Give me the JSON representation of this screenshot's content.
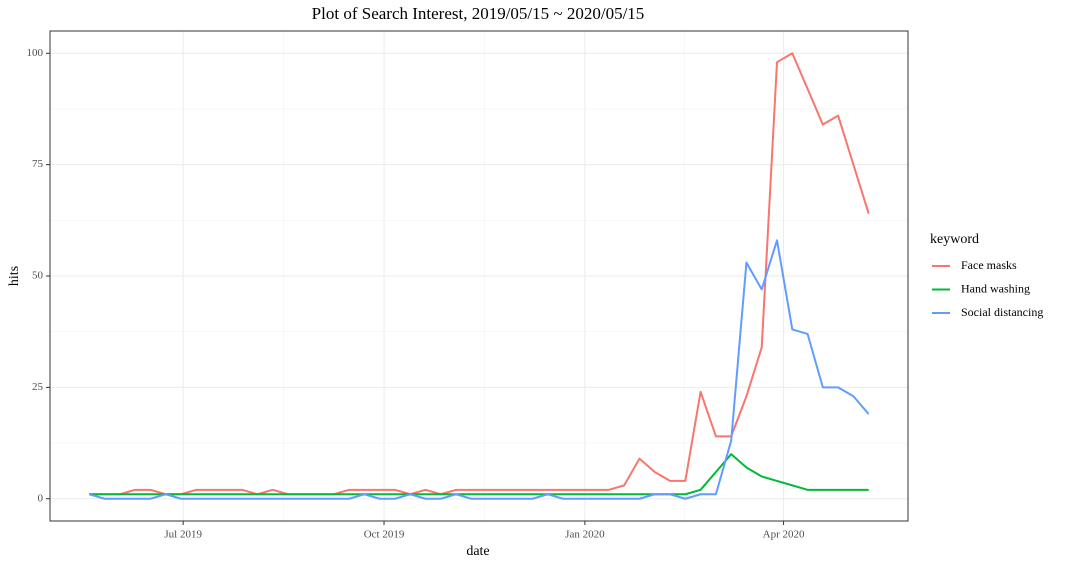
{
  "chart_data": {
    "type": "line",
    "title": "Plot of Search Interest, 2019/05/15 ~ 2020/05/15",
    "x_label": "date",
    "y_label": "hits",
    "legend_title": "keyword",
    "x": [
      "2019-05-19",
      "2019-05-26",
      "2019-06-02",
      "2019-06-09",
      "2019-06-16",
      "2019-06-23",
      "2019-06-30",
      "2019-07-07",
      "2019-07-14",
      "2019-07-21",
      "2019-07-28",
      "2019-08-04",
      "2019-08-11",
      "2019-08-18",
      "2019-08-25",
      "2019-09-01",
      "2019-09-08",
      "2019-09-15",
      "2019-09-22",
      "2019-09-29",
      "2019-10-06",
      "2019-10-13",
      "2019-10-20",
      "2019-10-27",
      "2019-11-03",
      "2019-11-10",
      "2019-11-17",
      "2019-11-24",
      "2019-12-01",
      "2019-12-08",
      "2019-12-15",
      "2019-12-22",
      "2019-12-29",
      "2020-01-05",
      "2020-01-12",
      "2020-01-19",
      "2020-01-26",
      "2020-02-02",
      "2020-02-09",
      "2020-02-16",
      "2020-02-23",
      "2020-03-01",
      "2020-03-08",
      "2020-03-15",
      "2020-03-22",
      "2020-03-29",
      "2020-04-05",
      "2020-04-12",
      "2020-04-19",
      "2020-04-26",
      "2020-05-03",
      "2020-05-10"
    ],
    "series": [
      {
        "name": "Face masks",
        "color": "#F8766D",
        "values": [
          1,
          1,
          1,
          2,
          2,
          1,
          1,
          2,
          2,
          2,
          2,
          1,
          2,
          1,
          1,
          1,
          1,
          2,
          2,
          2,
          2,
          1,
          2,
          1,
          2,
          2,
          2,
          2,
          2,
          2,
          2,
          2,
          2,
          2,
          2,
          3,
          9,
          6,
          4,
          4,
          24,
          14,
          14,
          23,
          34,
          98,
          100,
          92,
          84,
          86,
          75,
          64
        ]
      },
      {
        "name": "Hand washing",
        "color": "#00BA38",
        "values": [
          1,
          1,
          1,
          1,
          1,
          1,
          1,
          1,
          1,
          1,
          1,
          1,
          1,
          1,
          1,
          1,
          1,
          1,
          1,
          1,
          1,
          1,
          1,
          1,
          1,
          1,
          1,
          1,
          1,
          1,
          1,
          1,
          1,
          1,
          1,
          1,
          1,
          1,
          1,
          1,
          2,
          6,
          10,
          7,
          5,
          4,
          3,
          2,
          2,
          2,
          2,
          2
        ]
      },
      {
        "name": "Social distancing",
        "color": "#619CFF",
        "values": [
          1,
          0,
          0,
          0,
          0,
          1,
          0,
          0,
          0,
          0,
          0,
          0,
          0,
          0,
          0,
          0,
          0,
          0,
          1,
          0,
          0,
          1,
          0,
          0,
          1,
          0,
          0,
          0,
          0,
          0,
          1,
          0,
          0,
          0,
          0,
          0,
          0,
          1,
          1,
          0,
          1,
          1,
          13,
          53,
          47,
          58,
          38,
          37,
          25,
          25,
          23,
          19
        ]
      }
    ],
    "xlim": [
      "2019-05-01",
      "2020-05-28"
    ],
    "xticks": [
      {
        "value": "2019-07-01",
        "label": "Jul 2019"
      },
      {
        "value": "2019-10-01",
        "label": "Oct 2019"
      },
      {
        "value": "2020-01-01",
        "label": "Jan 2020"
      },
      {
        "value": "2020-04-01",
        "label": "Apr 2020"
      }
    ],
    "ylim": [
      -5,
      105
    ],
    "yticks": [
      0,
      25,
      50,
      75,
      100
    ],
    "grid": true,
    "legend": "right"
  }
}
